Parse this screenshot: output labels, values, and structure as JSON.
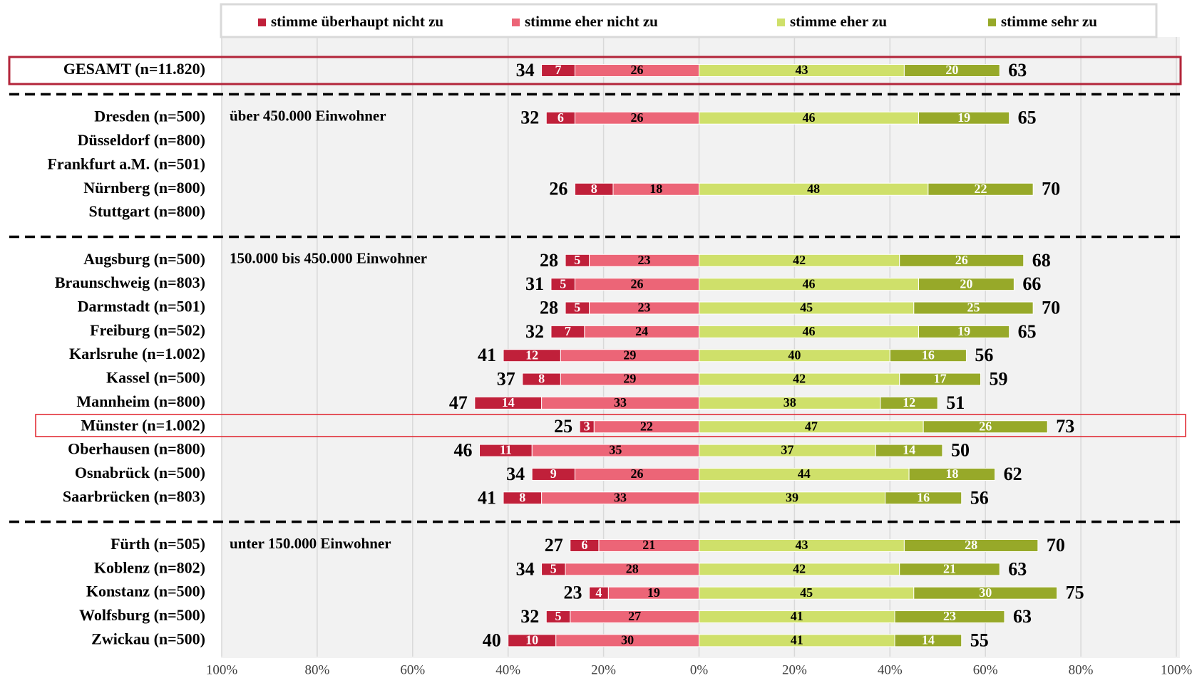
{
  "chart_data": {
    "type": "diverging_bar",
    "categories": [
      "GESAMT (n=11.820)",
      "Dresden (n=500)",
      "Düsseldorf (n=800)",
      "Frankfurt a.M. (n=501)",
      "Nürnberg (n=800)",
      "Stuttgart (n=800)",
      "Augsburg (n=500)",
      "Braunschweig (n=803)",
      "Darmstadt (n=501)",
      "Freiburg (n=502)",
      "Karlsruhe (n=1.002)",
      "Kassel (n=500)",
      "Mannheim (n=800)",
      "Münster (n=1.002)",
      "Oberhausen (n=800)",
      "Osnabrück (n=500)",
      "Saarbrücken (n=803)",
      "Fürth (n=505)",
      "Koblenz (n=802)",
      "Konstanz (n=500)",
      "Wolfsburg (n=500)",
      "Zwickau (n=500)"
    ],
    "series": [
      {
        "name": "stimme überhaupt nicht zu",
        "color": "#c0203a",
        "label_color": "#ffffff",
        "side": "left",
        "values": [
          7,
          6,
          null,
          null,
          8,
          null,
          5,
          5,
          5,
          7,
          12,
          8,
          14,
          3,
          11,
          9,
          8,
          6,
          5,
          4,
          5,
          10
        ]
      },
      {
        "name": "stimme eher nicht zu",
        "color": "#ec6577",
        "label_color": "#000000",
        "side": "left",
        "values": [
          26,
          26,
          null,
          null,
          18,
          null,
          23,
          26,
          23,
          24,
          29,
          29,
          33,
          22,
          35,
          26,
          33,
          21,
          28,
          19,
          27,
          30
        ]
      },
      {
        "name": "stimme eher zu",
        "color": "#cfe06a",
        "label_color": "#000000",
        "side": "right",
        "values": [
          43,
          46,
          null,
          null,
          48,
          null,
          42,
          46,
          45,
          46,
          40,
          42,
          38,
          47,
          37,
          44,
          39,
          43,
          42,
          45,
          41,
          41
        ]
      },
      {
        "name": "stimme sehr zu",
        "color": "#97a929",
        "label_color": "#ffffff",
        "side": "right",
        "values": [
          20,
          19,
          null,
          null,
          22,
          null,
          26,
          20,
          25,
          19,
          16,
          17,
          12,
          26,
          14,
          18,
          16,
          28,
          21,
          30,
          23,
          14
        ]
      }
    ],
    "totals_left": [
      34,
      32,
      null,
      null,
      26,
      null,
      28,
      31,
      28,
      32,
      41,
      37,
      47,
      25,
      46,
      34,
      41,
      27,
      34,
      23,
      32,
      40
    ],
    "totals_right": [
      63,
      65,
      null,
      null,
      70,
      null,
      68,
      66,
      70,
      65,
      56,
      59,
      51,
      73,
      50,
      62,
      56,
      70,
      63,
      75,
      63,
      55
    ],
    "annotations": [
      "über 450.000 Einwohner",
      "150.000 bis 450.000 Einwohner",
      "unter 150.000 Einwohner"
    ],
    "xlim": [
      -100,
      100
    ],
    "xticks": [
      {
        "value": -100,
        "label": "100%"
      },
      {
        "value": -80,
        "label": "80%"
      },
      {
        "value": -60,
        "label": "60%"
      },
      {
        "value": -40,
        "label": "40%"
      },
      {
        "value": -20,
        "label": "20%"
      },
      {
        "value": 0,
        "label": "0%"
      },
      {
        "value": 20,
        "label": "20%"
      },
      {
        "value": 40,
        "label": "40%"
      },
      {
        "value": 60,
        "label": "60%"
      },
      {
        "value": 80,
        "label": "80%"
      },
      {
        "value": 100,
        "label": "100%"
      }
    ],
    "grid": true
  }
}
